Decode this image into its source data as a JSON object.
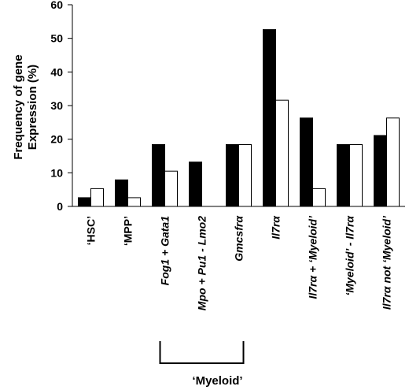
{
  "chart_data": {
    "type": "bar",
    "ylabel_lines": [
      "Frequency of gene",
      "Expression (%)"
    ],
    "ylim": [
      0,
      60
    ],
    "yticks": [
      0,
      10,
      20,
      30,
      40,
      50,
      60
    ],
    "categories": [
      {
        "label": "‘HSC’",
        "italic": false
      },
      {
        "label": "‘MPP’",
        "italic": false
      },
      {
        "label": "Fog1 + Gata1",
        "italic": true
      },
      {
        "label": "Mpo + Pu1 - Lmo2",
        "italic": true
      },
      {
        "label": "Gmcsfrα",
        "italic": true
      },
      {
        "label": "Il7rα",
        "italic": true
      },
      {
        "label": "Il7rα + ‘Myeloid’",
        "italic": true
      },
      {
        "label": "‘Myeloid’ - Il7rα",
        "italic": true
      },
      {
        "label": "Il7rα not ‘Myeloid’",
        "italic": true
      }
    ],
    "series": [
      {
        "color": "#000000",
        "values": [
          2.6,
          7.9,
          18.4,
          13.2,
          18.4,
          52.6,
          26.3,
          18.4,
          21.1
        ]
      },
      {
        "color": "#ffffff",
        "values": [
          5.3,
          2.6,
          10.5,
          0,
          18.4,
          31.6,
          5.3,
          18.4,
          26.3
        ]
      }
    ],
    "bracket_label": "‘Myeloid’",
    "bracket_span": [
      2,
      4
    ]
  }
}
